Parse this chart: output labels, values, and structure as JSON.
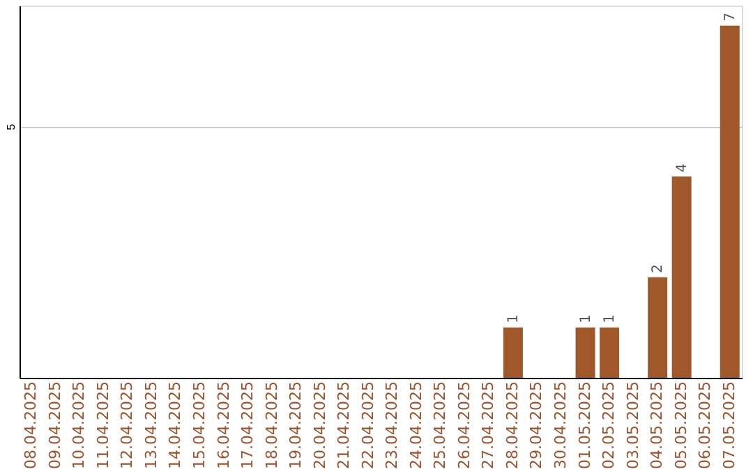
{
  "chart_data": {
    "type": "bar",
    "categories": [
      "08.04.2025",
      "09.04.2025",
      "10.04.2025",
      "11.04.2025",
      "12.04.2025",
      "13.04.2025",
      "14.04.2025",
      "15.04.2025",
      "16.04.2025",
      "17.04.2025",
      "18.04.2025",
      "19.04.2025",
      "20.04.2025",
      "21.04.2025",
      "22.04.2025",
      "23.04.2025",
      "24.04.2025",
      "25.04.2025",
      "26.04.2025",
      "27.04.2025",
      "28.04.2025",
      "29.04.2025",
      "30.04.2025",
      "01.05.2025",
      "02.05.2025",
      "03.05.2025",
      "04.05.2025",
      "05.05.2025",
      "06.05.2025",
      "07.05.2025"
    ],
    "series": [
      {
        "color": "#a0582a",
        "values": [
          null,
          null,
          null,
          null,
          null,
          null,
          null,
          null,
          null,
          null,
          null,
          null,
          null,
          null,
          null,
          null,
          null,
          null,
          null,
          null,
          1,
          null,
          null,
          1,
          1,
          null,
          2,
          4,
          null,
          7
        ]
      }
    ],
    "ylim": [
      0,
      7.4
    ],
    "yticks": [
      5
    ],
    "grid": "y",
    "data_labels": true
  }
}
